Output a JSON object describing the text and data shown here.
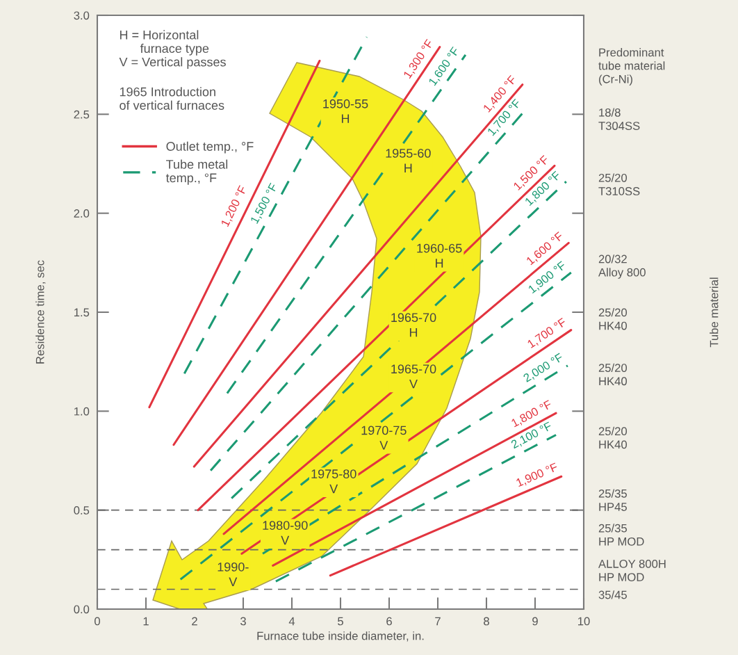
{
  "chart_data": {
    "type": "line",
    "xlabel": "Furnace tube inside diameter, in.",
    "ylabel": "Residence time, sec",
    "xlim": [
      0,
      10
    ],
    "ylim": [
      0,
      3
    ],
    "xticks": [
      0,
      1,
      2,
      3,
      4,
      5,
      6,
      7,
      8,
      9,
      10
    ],
    "yticks": [
      {
        "value": 0,
        "label": "0.0"
      },
      {
        "value": 0.5,
        "label": "0.5"
      },
      {
        "value": 1,
        "label": "1.0"
      },
      {
        "value": 1.5,
        "label": "1.5"
      },
      {
        "value": 2,
        "label": "2.0"
      },
      {
        "value": 2.5,
        "label": "2.5"
      },
      {
        "value": 3,
        "label": "3.0"
      }
    ],
    "legend": "top left",
    "series": [
      {
        "name": "Outlet temp., °F",
        "color": "#e2343f",
        "line_style": "solid",
        "x": [
          1.07,
          4.57,
          null,
          1.57,
          7.04,
          null,
          1.99,
          8.74,
          null,
          2.07,
          9.4,
          null,
          2.6,
          9.69,
          null,
          2.97,
          9.74,
          null,
          3.61,
          9.43,
          null,
          4.79,
          9.54
        ],
        "values": [
          1.02,
          2.77,
          null,
          0.83,
          2.84,
          null,
          0.72,
          2.65,
          null,
          0.5,
          2.24,
          null,
          0.38,
          1.85,
          null,
          0.28,
          1.41,
          null,
          0.22,
          0.99,
          null,
          0.17,
          0.67
        ]
      },
      {
        "name": "Tube metal\ntemp., °F",
        "color": "#1b9a73",
        "line_style": "dashed",
        "x": [
          1.79,
          5.54,
          null,
          2.67,
          7.57,
          null,
          2.33,
          8.83,
          null,
          2.76,
          9.64,
          null,
          1.71,
          9.74,
          null,
          3.4,
          9.67,
          null,
          3.67,
          9.43
        ],
        "values": [
          1.19,
          2.89,
          null,
          1.09,
          2.8,
          null,
          0.7,
          2.53,
          null,
          0.56,
          2.16,
          null,
          0.15,
          1.7,
          null,
          0.28,
          1.23,
          null,
          0.14,
          0.88
        ]
      }
    ],
    "ref_lines": [
      {
        "axis": "y",
        "value": 0.5,
        "color": "#666666",
        "line_style": "dashed"
      },
      {
        "axis": "y",
        "value": 0.3,
        "color": "#666666",
        "line_style": "dashed"
      },
      {
        "axis": "y",
        "value": 0.1,
        "color": "#666666",
        "line_style": "dashed"
      }
    ],
    "annotations": [
      "H = Horizontal\n      furnace type\nV = Vertical passes",
      "1965 Introduction\nof vertical furnaces",
      "Predominant\ntube material\n(Cr-Ni)",
      "18/8\nT304SS",
      "25/20\nT310SS",
      "20/32\nAlloy 800",
      "25/20\nHK40",
      "25/20\nHK40",
      "25/20\nHK40",
      "25/35\nHP45",
      "25/35\nHP MOD",
      "ALLOY 800H\nHP MOD",
      "35/45",
      "1950-55\nH",
      "1955-60\nH",
      "1960-65\nH",
      "1965-70\nH",
      "1965-70\nV",
      "1970-75\nV",
      "1975-80\nV",
      "1980-90\nV",
      "1990-\nV",
      "Tube material",
      {
        "text": "1,200 °F",
        "x": 3.21,
        "y": 2.11
      },
      {
        "text": "1,300 °F",
        "x": 7.04,
        "y": 2.84
      },
      {
        "text": "1,400 °F",
        "x": 8.74,
        "y": 2.65
      },
      {
        "text": "1,500 °F",
        "x": 9.4,
        "y": 2.24
      },
      {
        "text": "1,600 °F",
        "x": 9.69,
        "y": 1.85
      },
      {
        "text": "1,700 °F",
        "x": 9.74,
        "y": 1.41
      },
      {
        "text": "1,800 °F",
        "x": 9.43,
        "y": 0.99
      },
      {
        "text": "1,900 °F",
        "x": 9.54,
        "y": 0.67
      },
      {
        "text": "1,500 °F",
        "x": 3.84,
        "y": 2.12
      },
      {
        "text": "1,600 °F",
        "x": 7.57,
        "y": 2.8
      },
      {
        "text": "1,700 °F",
        "x": 8.83,
        "y": 2.53
      },
      {
        "text": "1,800 °F",
        "x": 9.64,
        "y": 2.16
      },
      {
        "text": "1,900 °F",
        "x": 9.74,
        "y": 1.7
      },
      {
        "text": "2,000 °F",
        "x": 9.67,
        "y": 1.23
      },
      {
        "text": "2,100 °F",
        "x": 9.43,
        "y": 0.88
      }
    ]
  }
}
